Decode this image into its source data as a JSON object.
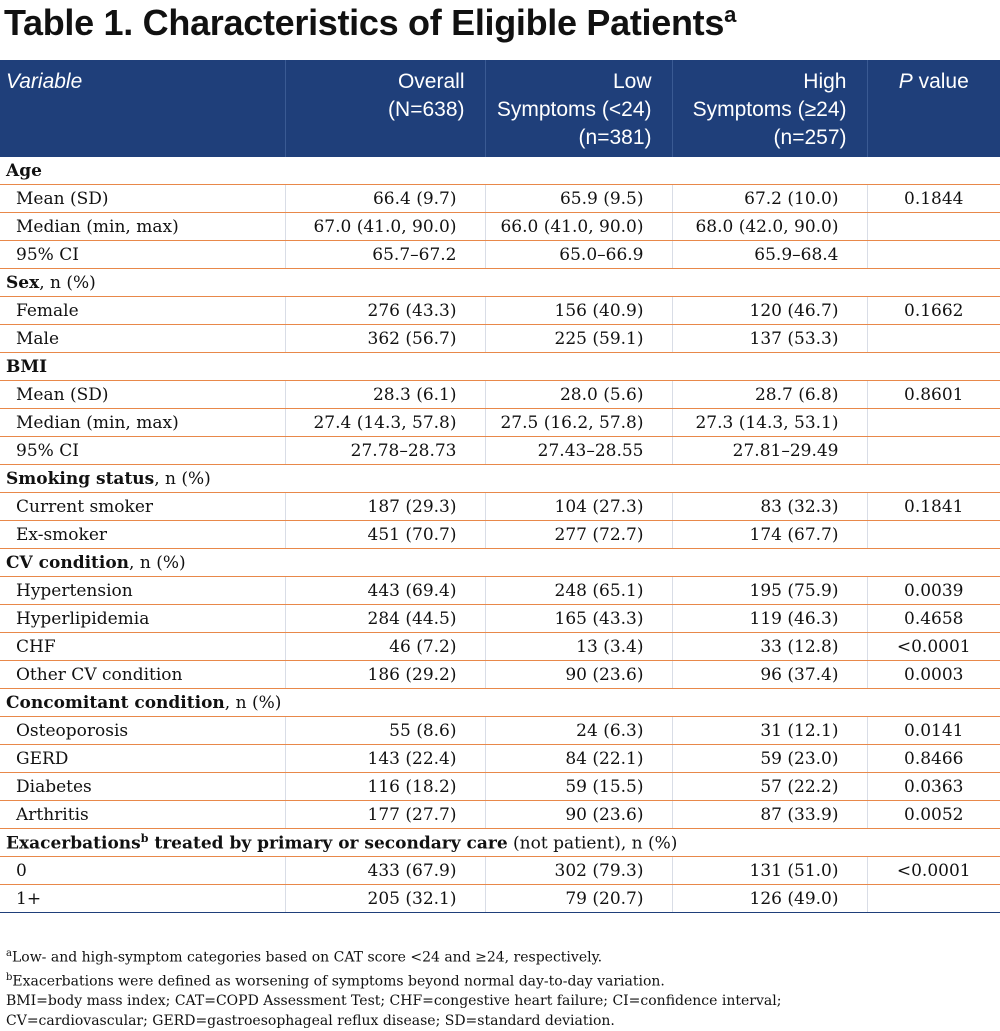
{
  "title": {
    "text": "Table 1. Characteristics of Eligible Patients",
    "sup": "a"
  },
  "header": {
    "variable": "Variable",
    "overall": [
      "Overall",
      "(N=638)"
    ],
    "low": [
      "Low",
      "Symptoms (<24)",
      "(n=381)"
    ],
    "high": [
      "High",
      "Symptoms (≥24)",
      "(n=257)"
    ],
    "p_italic": "P",
    "p_rest": " value"
  },
  "sections": [
    {
      "name": "Age",
      "suffix": "",
      "rows": [
        {
          "label": "Mean (SD)",
          "overall": "66.4 (9.7)",
          "low": "65.9 (9.5)",
          "high": "67.2 (10.0)",
          "p": "0.1844"
        },
        {
          "label": "Median (min, max)",
          "overall": "67.0 (41.0, 90.0)",
          "low": "66.0 (41.0, 90.0)",
          "high": "68.0 (42.0, 90.0)",
          "p": ""
        },
        {
          "label": "95% CI",
          "overall": "65.7–67.2",
          "low": "65.0–66.9",
          "high": "65.9–68.4",
          "p": ""
        }
      ]
    },
    {
      "name": "Sex",
      "suffix": ", n (%)",
      "rows": [
        {
          "label": "Female",
          "overall": "276 (43.3)",
          "low": "156 (40.9)",
          "high": "120 (46.7)",
          "p": "0.1662"
        },
        {
          "label": "Male",
          "overall": "362 (56.7)",
          "low": "225 (59.1)",
          "high": "137 (53.3)",
          "p": ""
        }
      ]
    },
    {
      "name": "BMI",
      "suffix": "",
      "rows": [
        {
          "label": "Mean (SD)",
          "overall": "28.3 (6.1)",
          "low": "28.0 (5.6)",
          "high": "28.7 (6.8)",
          "p": "0.8601"
        },
        {
          "label": "Median (min, max)",
          "overall": "27.4 (14.3, 57.8)",
          "low": "27.5 (16.2, 57.8)",
          "high": "27.3 (14.3, 53.1)",
          "p": ""
        },
        {
          "label": "95% CI",
          "overall": "27.78–28.73",
          "low": "27.43–28.55",
          "high": "27.81–29.49",
          "p": ""
        }
      ]
    },
    {
      "name": "Smoking status",
      "suffix": ", n (%)",
      "rows": [
        {
          "label": "Current smoker",
          "overall": "187 (29.3)",
          "low": "104 (27.3)",
          "high": "83 (32.3)",
          "p": "0.1841"
        },
        {
          "label": "Ex-smoker",
          "overall": "451 (70.7)",
          "low": "277 (72.7)",
          "high": "174 (67.7)",
          "p": ""
        }
      ]
    },
    {
      "name": "CV condition",
      "suffix": ", n (%)",
      "rows": [
        {
          "label": "Hypertension",
          "overall": "443 (69.4)",
          "low": "248 (65.1)",
          "high": "195 (75.9)",
          "p": "0.0039"
        },
        {
          "label": "Hyperlipidemia",
          "overall": "284 (44.5)",
          "low": "165 (43.3)",
          "high": "119 (46.3)",
          "p": "0.4658"
        },
        {
          "label": "CHF",
          "overall": "46 (7.2)",
          "low": "13 (3.4)",
          "high": "33 (12.8)",
          "p": "<0.0001"
        },
        {
          "label": "Other CV condition",
          "overall": "186 (29.2)",
          "low": "90 (23.6)",
          "high": "96 (37.4)",
          "p": "0.0003"
        }
      ]
    },
    {
      "name": "Concomitant condition",
      "suffix": ", n (%)",
      "rows": [
        {
          "label": "Osteoporosis",
          "overall": "55 (8.6)",
          "low": "24 (6.3)",
          "high": "31 (12.1)",
          "p": "0.0141"
        },
        {
          "label": "GERD",
          "overall": "143 (22.4)",
          "low": "84 (22.1)",
          "high": "59 (23.0)",
          "p": "0.8466"
        },
        {
          "label": "Diabetes",
          "overall": "116 (18.2)",
          "low": "59 (15.5)",
          "high": "57 (22.2)",
          "p": "0.0363"
        },
        {
          "label": "Arthritis",
          "overall": "177 (27.7)",
          "low": "90 (23.6)",
          "high": "87 (33.9)",
          "p": "0.0052"
        }
      ]
    },
    {
      "name": "Exacerbations",
      "sup": "b",
      "bold_after": " treated by primary or secondary care",
      "suffix": " (not patient), n (%)",
      "rows": [
        {
          "label": "0",
          "overall": "433 (67.9)",
          "low": "302 (79.3)",
          "high": "131 (51.0)",
          "p": "<0.0001"
        },
        {
          "label": "1+",
          "overall": "205 (32.1)",
          "low": "79 (20.7)",
          "high": "126 (49.0)",
          "p": ""
        }
      ]
    }
  ],
  "footnotes": {
    "a_sup": "a",
    "a_text": "Low- and high-symptom categories based on CAT score <24 and ≥24, respectively.",
    "b_sup": "b",
    "b_text": "Exacerbations were defined as worsening of symptoms beyond normal day-to-day variation.",
    "abbrev1": "BMI=body mass index; CAT=COPD Assessment Test; CHF=congestive heart failure; CI=confidence interval;",
    "abbrev2": "CV=cardiovascular; GERD=gastroesophageal reflux disease; SD=standard deviation."
  }
}
